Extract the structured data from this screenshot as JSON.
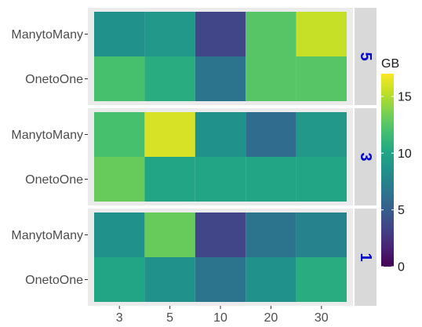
{
  "chart_data": {
    "type": "heatmap",
    "x_categories": [
      "3",
      "5",
      "10",
      "20",
      "30"
    ],
    "y_categories": [
      "ManytoMany",
      "OnetoOne"
    ],
    "legend": {
      "title": "GB",
      "min": 0,
      "max": 17,
      "ticks": [
        "0",
        "5",
        "10",
        "15"
      ],
      "tick_values": [
        0,
        5,
        10,
        15
      ],
      "colormap": "viridis",
      "placement": "right"
    },
    "panels": [
      {
        "label": "5",
        "values": {
          "ManytoMany": [
            8.5,
            9.0,
            3.5,
            12.5,
            15.5
          ],
          "OnetoOne": [
            12.0,
            10.5,
            6.5,
            12.5,
            12.5
          ]
        }
      },
      {
        "label": "3",
        "values": {
          "ManytoMany": [
            12.0,
            16.0,
            8.5,
            6.0,
            9.0
          ],
          "OnetoOne": [
            13.0,
            10.0,
            10.0,
            10.0,
            10.0
          ]
        }
      },
      {
        "label": "1",
        "values": {
          "ManytoMany": [
            8.5,
            13.0,
            3.5,
            6.5,
            7.5
          ],
          "OnetoOne": [
            10.0,
            8.5,
            6.5,
            8.5,
            10.5
          ]
        }
      }
    ]
  }
}
